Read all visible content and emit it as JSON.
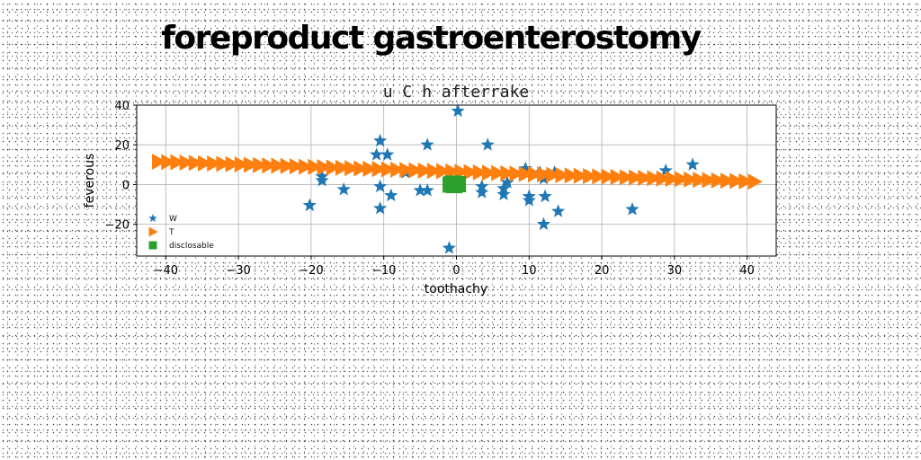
{
  "page": {
    "heading": "foreproduct gastroenterostomy"
  },
  "chart_data": {
    "type": "scatter",
    "title": "u C h afterrake",
    "xlabel": "toothachy",
    "ylabel": "feverous",
    "xlim": [
      -44,
      44
    ],
    "ylim": [
      -36,
      40
    ],
    "xticks": [
      -40,
      -30,
      -20,
      -10,
      0,
      10,
      20,
      30,
      40
    ],
    "yticks": [
      -20,
      0,
      20,
      40
    ],
    "grid": true,
    "legend_position": "lower-left",
    "series": [
      {
        "name": "W",
        "marker": "star",
        "color": "#1f77b4",
        "points": [
          [
            0.2,
            37
          ],
          [
            -10.5,
            22
          ],
          [
            -4,
            20
          ],
          [
            4.3,
            20
          ],
          [
            -11,
            15
          ],
          [
            -9.5,
            15
          ],
          [
            32.5,
            10
          ],
          [
            28.8,
            7
          ],
          [
            -7,
            6
          ],
          [
            -18.5,
            4
          ],
          [
            -18.5,
            2
          ],
          [
            9.5,
            8
          ],
          [
            11.5,
            6
          ],
          [
            13.5,
            6
          ],
          [
            12,
            3
          ],
          [
            7,
            1
          ],
          [
            -10.5,
            -1
          ],
          [
            3.5,
            -1
          ],
          [
            6.5,
            -2
          ],
          [
            -15.5,
            -2.5
          ],
          [
            -5,
            -3
          ],
          [
            -4,
            -3
          ],
          [
            3.5,
            -4
          ],
          [
            6.5,
            -5
          ],
          [
            -9,
            -5.5
          ],
          [
            10,
            -6
          ],
          [
            12.2,
            -6
          ],
          [
            10,
            -8
          ],
          [
            -20.2,
            -10.5
          ],
          [
            -10.5,
            -12
          ],
          [
            24.2,
            -12.5
          ],
          [
            14,
            -13.5
          ],
          [
            12,
            -20
          ],
          [
            -1,
            -32
          ]
        ]
      },
      {
        "name": "T",
        "marker": "triangle-right",
        "color": "#ff7f0e",
        "x_start": -41,
        "x_end": 41,
        "count": 66,
        "y_start": 11.5,
        "y_end": 1.5
      },
      {
        "name": "disclosable",
        "marker": "square",
        "color": "#2ca02c",
        "points": [
          [
            -0.8,
            0
          ],
          [
            -0.3,
            -0.3
          ],
          [
            0.2,
            0.2
          ],
          [
            -0.5,
            0.5
          ]
        ]
      }
    ]
  }
}
